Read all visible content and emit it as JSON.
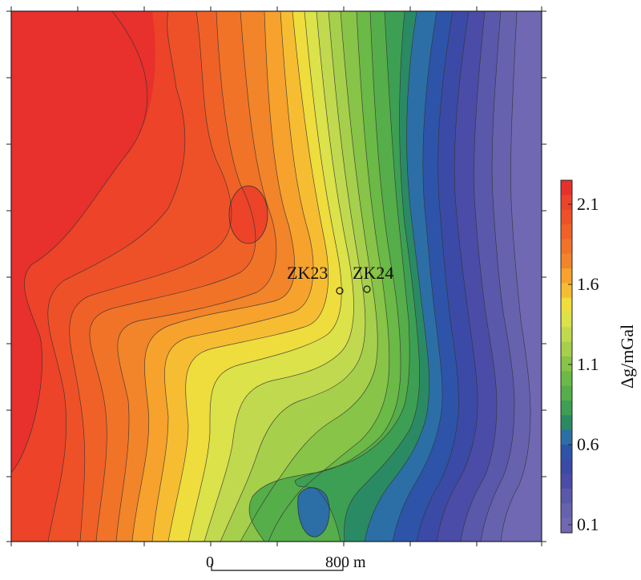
{
  "map": {
    "wells": [
      {
        "label": "ZK23"
      },
      {
        "label": "ZK24"
      }
    ]
  },
  "scale_bar": {
    "start_label": "0",
    "end_label": "800 m"
  },
  "colorbar": {
    "title": "Δg/mGal",
    "ticks": [
      "2.1",
      "1.6",
      "1.1",
      "0.6",
      "0.1"
    ],
    "colors": [
      "#e8302c",
      "#ec4329",
      "#ee5128",
      "#f06127",
      "#f17328",
      "#f2842a",
      "#f6a22d",
      "#f7bd32",
      "#efdc3d",
      "#dbe24a",
      "#c1d94f",
      "#a6cf4c",
      "#87c447",
      "#6bb946",
      "#55ae49",
      "#3d9f53",
      "#2a8a64",
      "#2b6fa6",
      "#2d54a8",
      "#3b4aa6",
      "#4b4ca7",
      "#5a58aa",
      "#6762ae",
      "#7068b2"
    ],
    "range": [
      0.05,
      2.25
    ]
  }
}
